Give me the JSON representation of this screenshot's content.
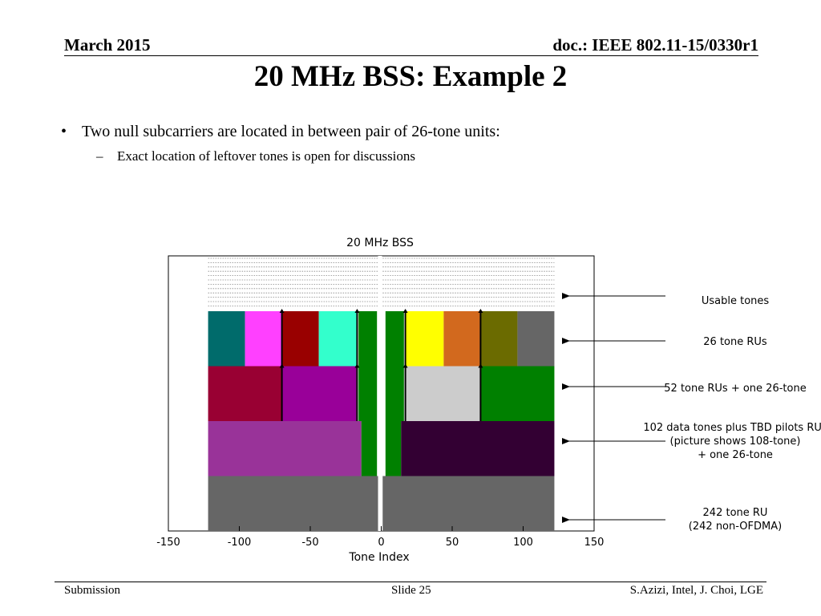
{
  "header": {
    "date": "March 2015",
    "doc": "doc.: IEEE 802.11-15/0330r1"
  },
  "slide": {
    "title": "20 MHz BSS: Example 2",
    "bullet": "Two null subcarriers are located in between pair of 26-tone units:",
    "sub_bullet": "Exact location of leftover tones is open for discussions"
  },
  "chart": {
    "title": "20 MHz BSS",
    "xlabel": "Tone Index",
    "xticks": [
      "-150",
      "-100",
      "-50",
      "0",
      "50",
      "100",
      "150"
    ]
  },
  "chart_data": {
    "type": "diagram",
    "title": "20 MHz BSS",
    "xlabel": "Tone Index",
    "xlim": [
      -150,
      150
    ],
    "xticks": [
      -150,
      -100,
      -50,
      0,
      50,
      100,
      150
    ],
    "usable_tones_range": [
      -122,
      122
    ],
    "null_tones": [
      -1,
      0,
      1
    ],
    "rows": [
      {
        "name": "26 tone RUs",
        "blocks": [
          {
            "from": -122,
            "to": -96,
            "color": "#006b6b"
          },
          {
            "from": -96,
            "to": -70,
            "color": "#ff40ff"
          },
          {
            "from": -70,
            "to": -44,
            "color": "#990000"
          },
          {
            "from": -44,
            "to": -17,
            "color": "#33ffcc"
          },
          {
            "from": -16,
            "to": -3,
            "color": "#008000"
          },
          {
            "from": 3,
            "to": 16,
            "color": "#008000"
          },
          {
            "from": 17,
            "to": 44,
            "color": "#ffff00"
          },
          {
            "from": 44,
            "to": 70,
            "color": "#d2691e"
          },
          {
            "from": 70,
            "to": 96,
            "color": "#6b6b00"
          },
          {
            "from": 96,
            "to": 122,
            "color": "#666666"
          }
        ]
      },
      {
        "name": "52 tone RUs + one 26-tone",
        "blocks": [
          {
            "from": -122,
            "to": -70,
            "color": "#990033"
          },
          {
            "from": -70,
            "to": -17,
            "color": "#990099"
          },
          {
            "from": -16,
            "to": -3,
            "color": "#008000"
          },
          {
            "from": 3,
            "to": 16,
            "color": "#008000"
          },
          {
            "from": 17,
            "to": 70,
            "color": "#cccccc"
          },
          {
            "from": 70,
            "to": 122,
            "color": "#008000"
          }
        ]
      },
      {
        "name": "102 data tones plus TBD pilots RUs (picture shows 108-tone) + one 26-tone",
        "blocks": [
          {
            "from": -122,
            "to": -14,
            "color": "#993399"
          },
          {
            "from": -14,
            "to": -3,
            "color": "#008000"
          },
          {
            "from": 3,
            "to": 14,
            "color": "#008000"
          },
          {
            "from": 14,
            "to": 122,
            "color": "#330033"
          }
        ]
      },
      {
        "name": "242 tone RU (242 non-OFDMA)",
        "blocks": [
          {
            "from": -122,
            "to": -1,
            "color": "#666666"
          },
          {
            "from": 1,
            "to": 122,
            "color": "#666666"
          }
        ]
      }
    ],
    "row_dividers": [
      {
        "row": 0,
        "ticks": [
          -70,
          -17,
          17,
          70
        ]
      },
      {
        "row": 1,
        "ticks": [
          -70,
          -17,
          17,
          70
        ]
      }
    ]
  },
  "annotations": [
    {
      "line1": "Usable tones",
      "line2": "",
      "line3": ""
    },
    {
      "line1": "26 tone RUs",
      "line2": "",
      "line3": ""
    },
    {
      "line1": "52 tone RUs + one 26-tone",
      "line2": "",
      "line3": ""
    },
    {
      "line1": "102 data tones plus TBD pilots RUs",
      "line2": "(picture shows 108-tone)",
      "line3": "+ one 26-tone"
    },
    {
      "line1": "242 tone RU",
      "line2": "(242 non-OFDMA)",
      "line3": ""
    }
  ],
  "footer": {
    "left": "Submission",
    "center": "Slide 25",
    "right": "S.Azizi, Intel, J. Choi, LGE"
  }
}
